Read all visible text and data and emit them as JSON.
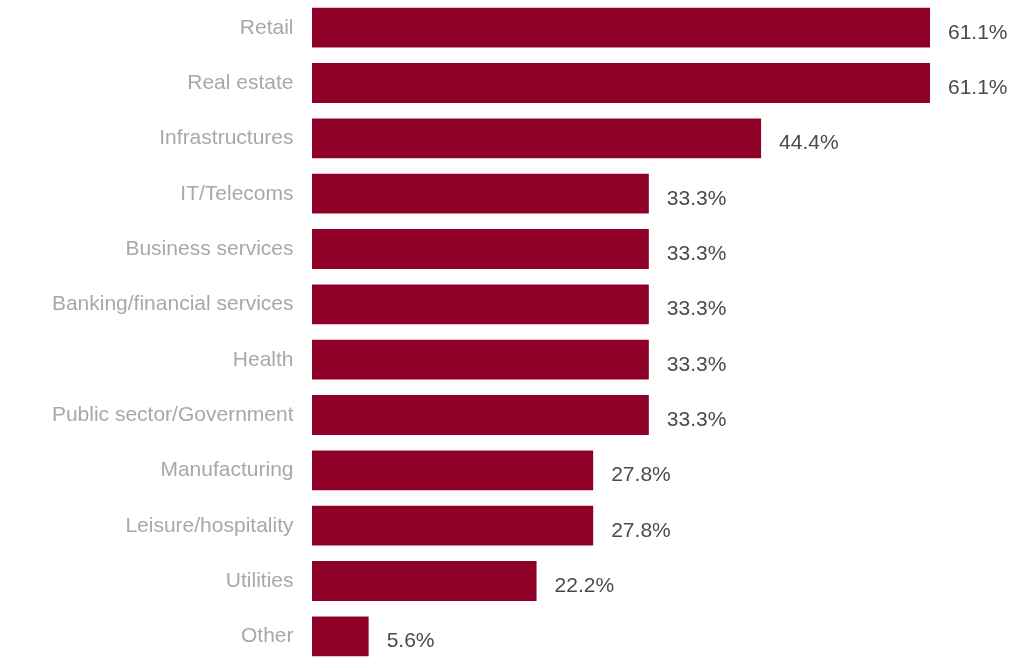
{
  "chart_data": {
    "type": "bar",
    "orientation": "horizontal",
    "categories": [
      "Retail",
      "Real estate",
      "Infrastructures",
      "IT/Telecoms",
      "Business services",
      "Banking/financial services",
      "Health",
      "Public sector/Government",
      "Manufacturing",
      "Leisure/hospitality",
      "Utilities",
      "Other"
    ],
    "values": [
      61.1,
      61.1,
      44.4,
      33.3,
      33.3,
      33.3,
      33.3,
      33.3,
      27.8,
      27.8,
      22.2,
      5.6
    ],
    "value_labels": [
      "61.1%",
      "61.1%",
      "44.4%",
      "33.3%",
      "33.3%",
      "33.3%",
      "33.3%",
      "33.3%",
      "27.8%",
      "27.8%",
      "22.2%",
      "5.6%"
    ],
    "color": "#8f0029"
  }
}
